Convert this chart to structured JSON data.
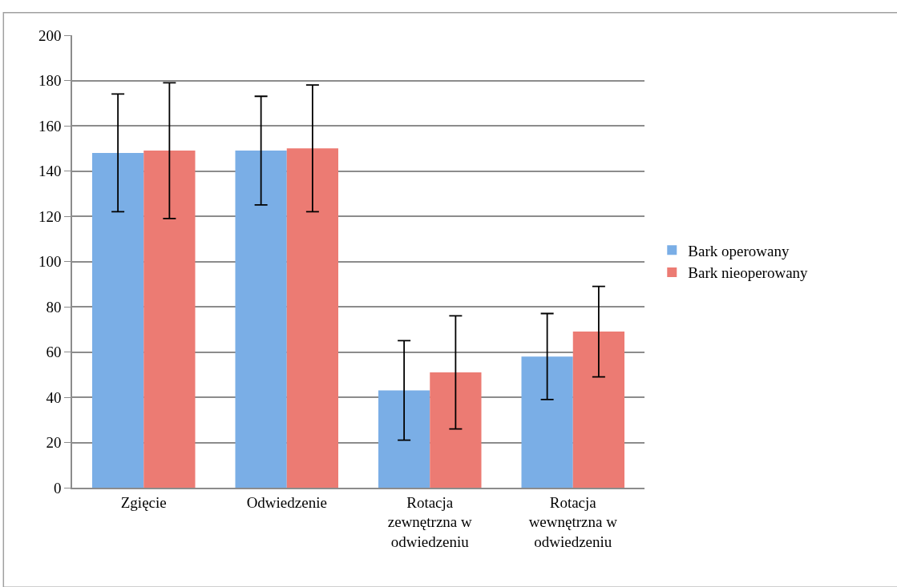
{
  "chart_data": {
    "type": "bar",
    "categories": [
      "Zgięcie",
      "Odwiedzenie",
      "Rotacja zewnętrzna w odwiedzeniu",
      "Rotacja wewnętrzna w odwiedzeniu"
    ],
    "series": [
      {
        "name": "Bark operowany",
        "color": "#7aaee6",
        "values": [
          148,
          149,
          43,
          58
        ],
        "errors": [
          26,
          24,
          22,
          19
        ]
      },
      {
        "name": "Bark nieoperowany",
        "color": "#ec7b73",
        "values": [
          149,
          150,
          51,
          69
        ],
        "errors": [
          30,
          28,
          25,
          20
        ]
      }
    ],
    "ylim": [
      0,
      200
    ],
    "yticks": [
      0,
      20,
      40,
      60,
      80,
      100,
      120,
      140,
      160,
      180,
      200
    ],
    "grid": "y",
    "legend": "right"
  }
}
